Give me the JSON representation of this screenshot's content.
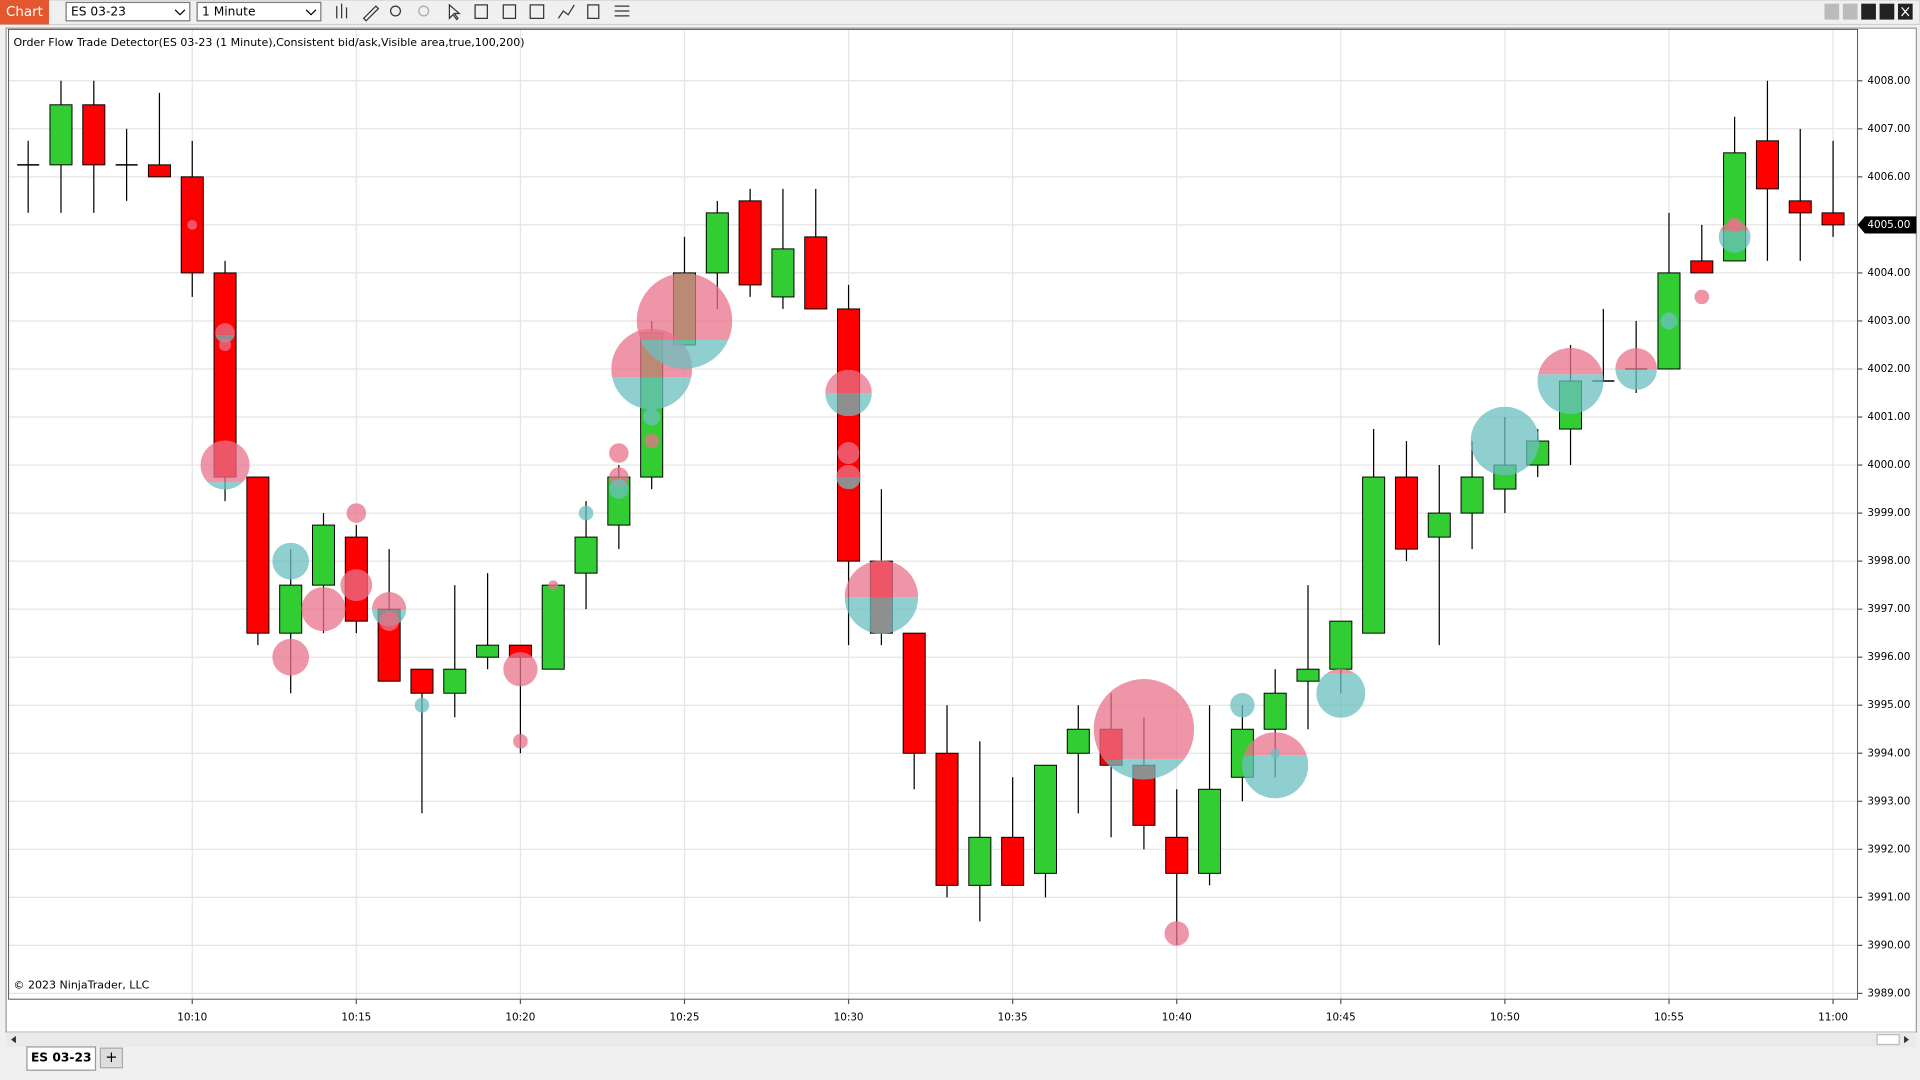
{
  "toolbar": {
    "title": "Chart",
    "instrument": "ES 03-23",
    "interval": "1 Minute"
  },
  "tabs": [
    "ES 03-23",
    "+"
  ],
  "chart_data": {
    "type": "candlestick",
    "title": "Order Flow Trade Detector(ES 03-23 (1 Minute),Consistent bid/ask,Visible area,true,100,200)",
    "copyright": "© 2023 NinjaTrader, LLC",
    "categories": [
      null,
      null,
      null,
      null,
      null,
      "10:10",
      null,
      null,
      null,
      null,
      "10:15",
      null,
      null,
      null,
      null,
      "10:20",
      null,
      null,
      null,
      null,
      "10:25",
      null,
      null,
      null,
      null,
      "10:30",
      null,
      null,
      null,
      null,
      "10:35",
      null,
      null,
      null,
      null,
      "10:40",
      null,
      null,
      null,
      null,
      "10:45",
      null,
      null,
      null,
      null,
      "10:50",
      null,
      null,
      null,
      null,
      "10:55",
      null,
      null,
      null,
      null,
      "11:00"
    ],
    "open": [
      4006.25,
      4006.25,
      4007.5,
      4006.25,
      4006.25,
      4006,
      4004,
      3999.75,
      3996.5,
      3997.5,
      3998.5,
      3997,
      3995.75,
      3995.25,
      3996,
      3996.25,
      3995.75,
      3997.75,
      3998.75,
      3999.75,
      4002.5,
      4004,
      4005.5,
      4003.5,
      4004.75,
      4003.25,
      3998,
      3996.5,
      3994,
      3991.25,
      3992.25,
      3991.5,
      3994,
      3994.5,
      3993.75,
      3992.25,
      3991.5,
      3993.5,
      3994.5,
      3995.5,
      3995.75,
      3996.5,
      3999.75,
      3998.5,
      3999,
      3999.5,
      4000,
      4000.75,
      4001.75,
      4002,
      4002,
      4004.25,
      4004.25,
      4006.75,
      4005.5,
      4005.25
    ],
    "high": [
      4006.75,
      4008,
      4008,
      4007,
      4007.75,
      4006.75,
      4004.25,
      3999.75,
      3998.25,
      3999,
      3998.75,
      3998.25,
      3995.75,
      3997.5,
      3997.75,
      3996.25,
      3997.5,
      3999.25,
      4000,
      4003,
      4004.75,
      4005.5,
      4005.75,
      4005.75,
      4005.75,
      4003.75,
      3999.5,
      3996.5,
      3995,
      3994.25,
      3993.5,
      3993.75,
      3995,
      3995.25,
      3994.75,
      3993.25,
      3995,
      3995,
      3995.75,
      3997.5,
      3996.75,
      4000.75,
      4000.5,
      4000,
      4000.5,
      4001,
      4000.75,
      4002.5,
      4003.25,
      4003,
      4005.25,
      4005,
      4007.25,
      4008,
      4007,
      4006.75
    ],
    "low": [
      4005.25,
      4005.25,
      4005.25,
      4005.5,
      4006,
      4003.5,
      3999.25,
      3996.25,
      3995.25,
      3996.5,
      3996.5,
      3995.5,
      3992.75,
      3994.75,
      3995.75,
      3994,
      3995.75,
      3997,
      3998.25,
      3999.5,
      4002.5,
      4003.25,
      4003.5,
      4003.25,
      4003.25,
      3996.25,
      3996.25,
      3993.25,
      3991,
      3990.5,
      3991.25,
      3991,
      3992.75,
      3992.25,
      3992,
      3990,
      3991.25,
      3993,
      3993.5,
      3994.5,
      3995.25,
      3996.5,
      3998,
      3996.25,
      3998.25,
      3999,
      3999.75,
      4000,
      4001.75,
      4001.5,
      4002,
      4004,
      4004.25,
      4004.25,
      4004.25,
      4004.75
    ],
    "close": [
      4006.25,
      4007.5,
      4006.25,
      4006.25,
      4006,
      4004,
      3999.75,
      3996.5,
      3997.5,
      3998.75,
      3996.75,
      3995.5,
      3995.25,
      3995.75,
      3996.25,
      3996,
      3997.5,
      3998.5,
      3999.75,
      4002.75,
      4004,
      4005.25,
      4003.75,
      4004.5,
      4003.25,
      3998,
      3996.5,
      3994,
      3991.25,
      3992.25,
      3991.25,
      3993.75,
      3994.5,
      3993.75,
      3992.5,
      3991.5,
      3993.25,
      3994.5,
      3995.25,
      3995.75,
      3996.75,
      3999.75,
      3998.25,
      3999,
      3999.75,
      4000,
      4000.5,
      4001.75,
      4001.75,
      4002,
      4004,
      4004,
      4006.5,
      4005.75,
      4005.25,
      4005
    ],
    "up_color": "#32cd32",
    "down_color": "#ff0000",
    "sell_color": "#e8738b",
    "buy_color": "#6bbfbf",
    "bubbles": [
      {
        "bar": 5,
        "price": 4005,
        "volume": 4,
        "sell_share": 1
      },
      {
        "bar": 6,
        "price": 4002.75,
        "volume": 8,
        "sell_share": 0.6
      },
      {
        "bar": 6,
        "price": 4002.5,
        "volume": 5,
        "sell_share": 1
      },
      {
        "bar": 6,
        "price": 4000,
        "volume": 20,
        "sell_share": 0.85
      },
      {
        "bar": 8,
        "price": 3998,
        "volume": 15,
        "sell_share": 0
      },
      {
        "bar": 8,
        "price": 3996,
        "volume": 15,
        "sell_share": 1
      },
      {
        "bar": 9,
        "price": 3997,
        "volume": 18,
        "sell_share": 1
      },
      {
        "bar": 10,
        "price": 3999,
        "volume": 8,
        "sell_share": 1
      },
      {
        "bar": 10,
        "price": 3997.5,
        "volume": 13,
        "sell_share": 1
      },
      {
        "bar": 11,
        "price": 3997,
        "volume": 14,
        "sell_share": 0.5
      },
      {
        "bar": 11,
        "price": 3996.75,
        "volume": 8,
        "sell_share": 1
      },
      {
        "bar": 12,
        "price": 3995,
        "volume": 6,
        "sell_share": 0
      },
      {
        "bar": 15,
        "price": 3995.75,
        "volume": 14,
        "sell_share": 1
      },
      {
        "bar": 15,
        "price": 3994.25,
        "volume": 6,
        "sell_share": 1
      },
      {
        "bar": 16,
        "price": 3997.5,
        "volume": 4,
        "sell_share": 1
      },
      {
        "bar": 17,
        "price": 3999,
        "volume": 6,
        "sell_share": 0
      },
      {
        "bar": 18,
        "price": 4000.25,
        "volume": 8,
        "sell_share": 1
      },
      {
        "bar": 18,
        "price": 3999.75,
        "volume": 8,
        "sell_share": 1
      },
      {
        "bar": 18,
        "price": 3999.5,
        "volume": 8,
        "sell_share": 0
      },
      {
        "bar": 19,
        "price": 4002,
        "volume": 33,
        "sell_share": 0.6
      },
      {
        "bar": 19,
        "price": 4001,
        "volume": 7,
        "sell_share": 0
      },
      {
        "bar": 19,
        "price": 4000.5,
        "volume": 6,
        "sell_share": 1
      },
      {
        "bar": 20,
        "price": 4003,
        "volume": 39,
        "sell_share": 0.7
      },
      {
        "bar": 25,
        "price": 4001.5,
        "volume": 19,
        "sell_share": 0.5
      },
      {
        "bar": 25,
        "price": 4000.25,
        "volume": 9,
        "sell_share": 1
      },
      {
        "bar": 25,
        "price": 3999.75,
        "volume": 10,
        "sell_share": 0.5
      },
      {
        "bar": 26,
        "price": 3997.25,
        "volume": 30,
        "sell_share": 0.5
      },
      {
        "bar": 34,
        "price": 3994.5,
        "volume": 41,
        "sell_share": 0.8
      },
      {
        "bar": 35,
        "price": 3990.25,
        "volume": 10,
        "sell_share": 1
      },
      {
        "bar": 37,
        "price": 3995,
        "volume": 10,
        "sell_share": 0
      },
      {
        "bar": 38,
        "price": 3993.75,
        "volume": 27,
        "sell_share": 0.35
      },
      {
        "bar": 38,
        "price": 3994,
        "volume": 4,
        "sell_share": 0
      },
      {
        "bar": 40,
        "price": 3995.25,
        "volume": 20,
        "sell_share": 0.1
      },
      {
        "bar": 45,
        "price": 4000.5,
        "volume": 28,
        "sell_share": 0
      },
      {
        "bar": 47,
        "price": 4001.75,
        "volume": 27,
        "sell_share": 0.4
      },
      {
        "bar": 49,
        "price": 4002,
        "volume": 17,
        "sell_share": 0.5
      },
      {
        "bar": 50,
        "price": 4003,
        "volume": 7,
        "sell_share": 0
      },
      {
        "bar": 51,
        "price": 4003.5,
        "volume": 6,
        "sell_share": 1
      },
      {
        "bar": 52,
        "price": 4004.75,
        "volume": 13,
        "sell_share": 0.3
      },
      {
        "bar": 52,
        "price": 4005,
        "volume": 6,
        "sell_share": 1
      }
    ],
    "ylim": [
      3988.88,
      4009.07
    ],
    "yticks": [
      {
        "value": 3989,
        "label": "3989.00"
      },
      {
        "value": 3990,
        "label": "3990.00"
      },
      {
        "value": 3991,
        "label": "3991.00"
      },
      {
        "value": 3992,
        "label": "3992.00"
      },
      {
        "value": 3993,
        "label": "3993.00"
      },
      {
        "value": 3994,
        "label": "3994.00"
      },
      {
        "value": 3995,
        "label": "3995.00"
      },
      {
        "value": 3996,
        "label": "3996.00"
      },
      {
        "value": 3997,
        "label": "3997.00"
      },
      {
        "value": 3998,
        "label": "3998.00"
      },
      {
        "value": 3999,
        "label": "3999.00"
      },
      {
        "value": 4000,
        "label": "4000.00"
      },
      {
        "value": 4001,
        "label": "4001.00"
      },
      {
        "value": 4002,
        "label": "4002.00"
      },
      {
        "value": 4003,
        "label": "4003.00"
      },
      {
        "value": 4004,
        "label": "4004.00"
      },
      {
        "value": 4005,
        "label": "4005.00"
      },
      {
        "value": 4006,
        "label": "4006.00"
      },
      {
        "value": 4007,
        "label": "4007.00"
      },
      {
        "value": 4008,
        "label": "4008.00"
      }
    ],
    "price_marker": {
      "value": 4005,
      "label": "4005.00"
    },
    "grid": true
  }
}
